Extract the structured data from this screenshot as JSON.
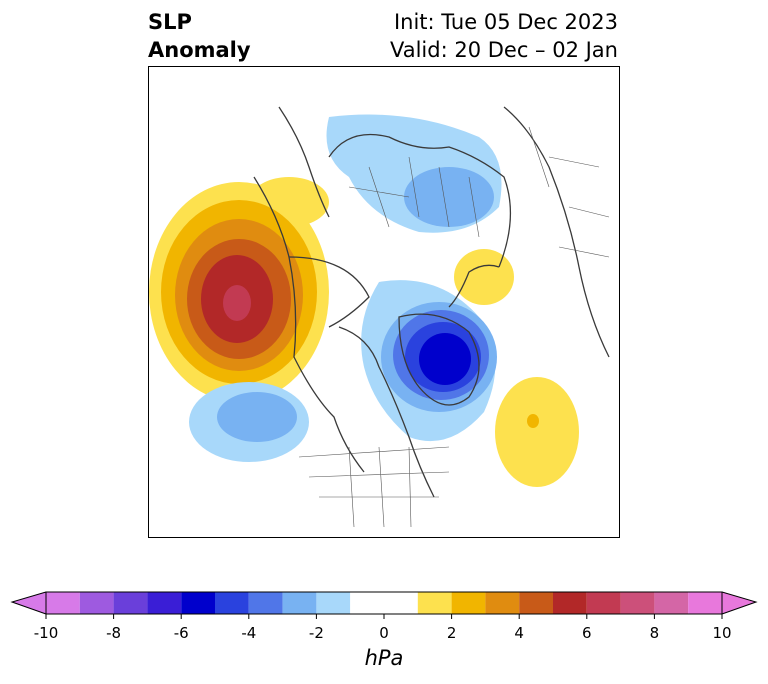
{
  "title": {
    "left_line1": "SLP",
    "left_line2": "Anomaly",
    "right_line1": "Init: Tue 05 Dec 2023",
    "right_line2": "Valid: 20 Dec – 02 Jan"
  },
  "colorbar": {
    "unit": "hPa",
    "ticks": [
      "-10",
      "-8",
      "-6",
      "-4",
      "-2",
      "0",
      "2",
      "4",
      "6",
      "8",
      "10"
    ],
    "levels": [
      -10,
      -9,
      -8,
      -7,
      -6,
      -5,
      -4,
      -3,
      -2,
      -1,
      1,
      2,
      3,
      4,
      5,
      6,
      7,
      8,
      9,
      10
    ],
    "colors": {
      "under": "#d77ae8",
      "over": "#e878dc",
      "bins": [
        "#d77ae8",
        "#9e5ae0",
        "#6a3fda",
        "#3a1ed6",
        "#0000cc",
        "#2a42de",
        "#5076e8",
        "#78b2f2",
        "#a8d8fa",
        "#ffffff",
        "#fde14e",
        "#f1b500",
        "#e08c10",
        "#c85a18",
        "#b22828",
        "#c23a52",
        "#cc507a",
        "#d466a6",
        "#e878dc"
      ]
    }
  },
  "map": {
    "regions": [
      {
        "name": "positive-anomaly-north-pacific",
        "max_value": 8
      },
      {
        "name": "negative-anomaly-greenland-baffin",
        "max_value": -7
      },
      {
        "name": "negative-anomaly-siberia",
        "max_value": -3
      },
      {
        "name": "negative-anomaly-west-us",
        "max_value": -3
      },
      {
        "name": "positive-anomaly-scandinavia",
        "max_value": 2
      },
      {
        "name": "positive-anomaly-atlantic",
        "max_value": 3
      }
    ]
  }
}
